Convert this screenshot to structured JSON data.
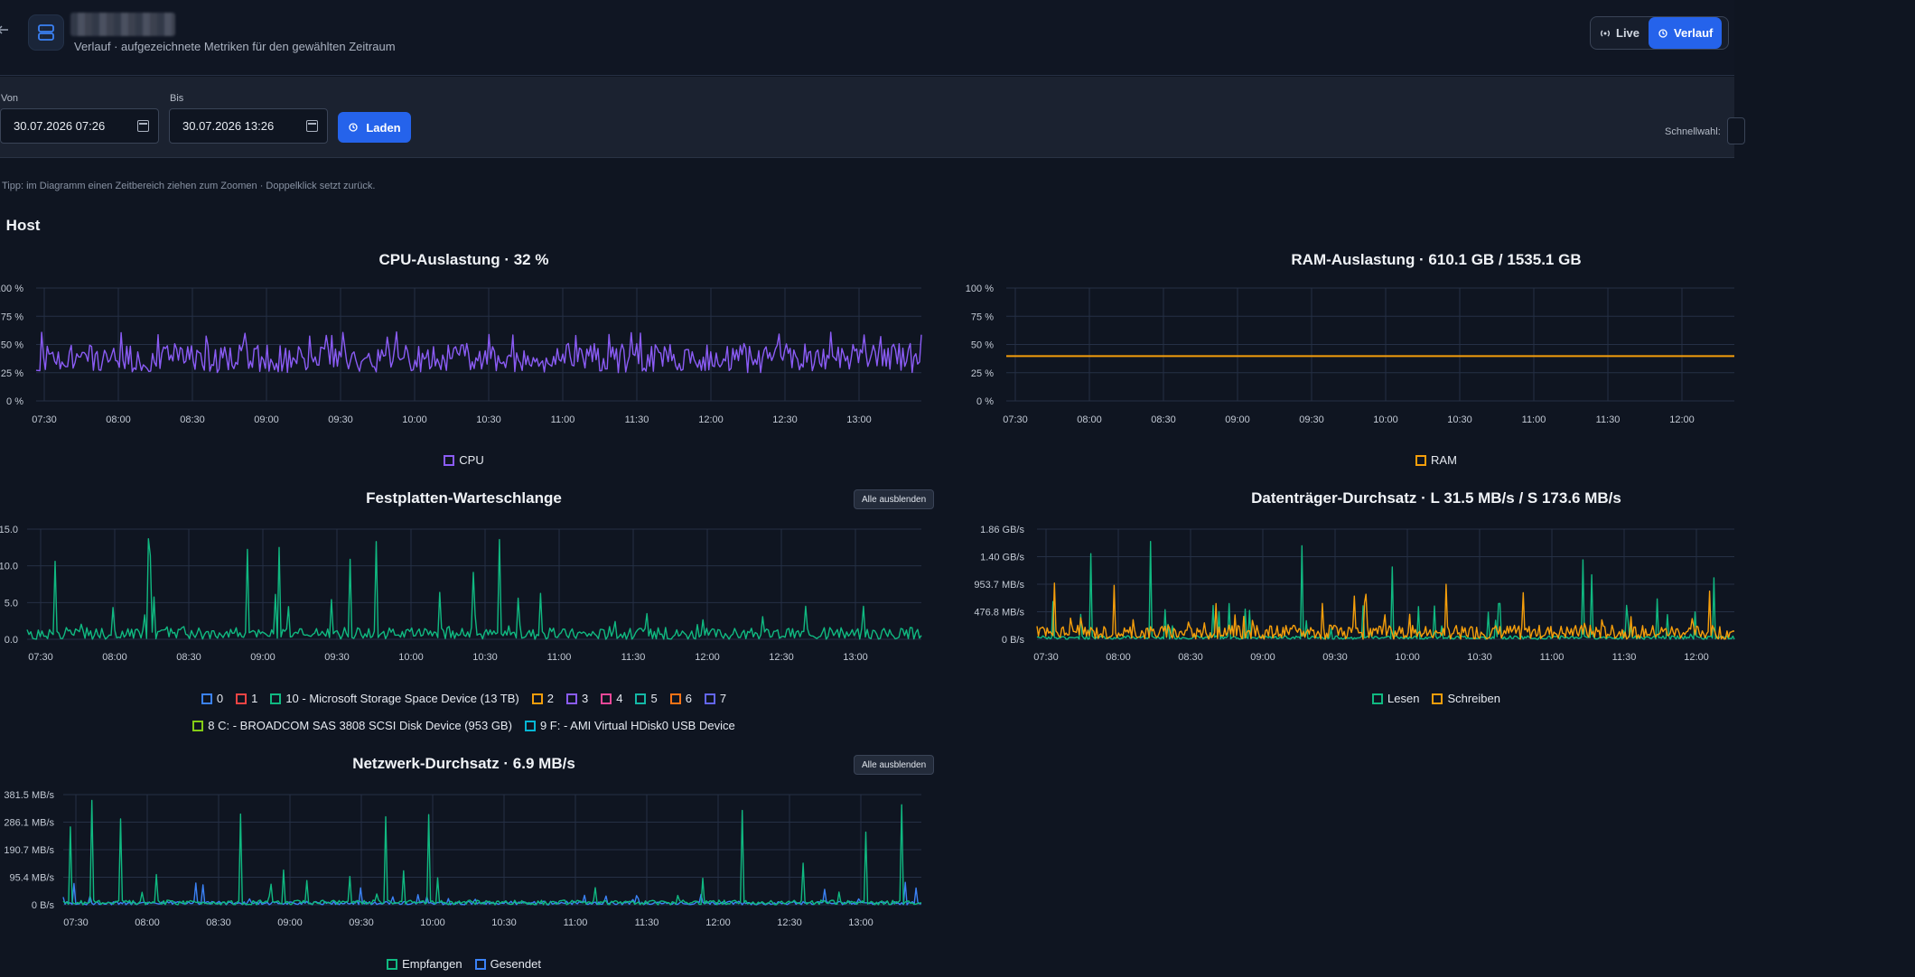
{
  "header": {
    "subtitle": "Verlauf · aufgezeichnete Metriken für den gewählten Zeitraum",
    "modes": [
      {
        "label": "Live",
        "active": false
      },
      {
        "label": "Verlauf",
        "active": true
      }
    ]
  },
  "filters": {
    "from_label": "Von",
    "from_value": "30.07.2026 07:26",
    "to_label": "Bis",
    "to_value": "30.07.2026 13:26",
    "load_label": "Laden",
    "quick_label": "Schnellwahl:"
  },
  "tip": "Tipp: im Diagramm einen Zeitbereich ziehen zum Zoomen · Doppelklick setzt zurück.",
  "section_title": "Host",
  "hide_all_label": "Alle ausblenden",
  "colors": {
    "cpu": "#8b5cf6",
    "ram": "#f59e0b",
    "grid": "#253045",
    "axis_text": "#c2c9d4",
    "read": "#10b981",
    "write": "#f59e0b",
    "received": "#10b981",
    "sent": "#3b82f6"
  },
  "chart_data": [
    {
      "id": "cpu",
      "type": "line",
      "title": "CPU-Auslastung · 32 %",
      "x_ticks": [
        "07:30",
        "08:00",
        "08:30",
        "09:00",
        "09:30",
        "10:00",
        "10:30",
        "11:00",
        "11:30",
        "12:00",
        "12:30",
        "13:00"
      ],
      "y_ticks": [
        "0 %",
        "25 %",
        "50 %",
        "75 %",
        "100 %"
      ],
      "ylim": [
        0,
        100
      ],
      "series": [
        {
          "name": "CPU",
          "color": "#8b5cf6",
          "pattern": "noise",
          "mean": 38,
          "amp": 13,
          "spike_max": 62
        }
      ],
      "legend": [
        "CPU"
      ]
    },
    {
      "id": "ram",
      "type": "line",
      "title": "RAM-Auslastung · 610.1 GB / 1535.1 GB",
      "x_ticks": [
        "07:30",
        "08:00",
        "08:30",
        "09:00",
        "09:30",
        "10:00",
        "10:30",
        "11:00",
        "11:30",
        "12:00"
      ],
      "y_ticks": [
        "0 %",
        "25 %",
        "50 %",
        "75 %",
        "100 %"
      ],
      "ylim": [
        0,
        100
      ],
      "series": [
        {
          "name": "RAM",
          "color": "#f59e0b",
          "pattern": "flat",
          "value": 39.7
        }
      ],
      "legend": [
        "RAM"
      ]
    },
    {
      "id": "disk-queue",
      "type": "line",
      "title": "Festplatten-Warteschlange",
      "x_ticks": [
        "07:30",
        "08:00",
        "08:30",
        "09:00",
        "09:30",
        "10:00",
        "10:30",
        "11:00",
        "11:30",
        "12:00",
        "12:30",
        "13:00"
      ],
      "y_ticks": [
        "0.0",
        "5.0",
        "10.0",
        "15.0"
      ],
      "ylim": [
        0,
        15
      ],
      "series": [
        {
          "name": "10 - Microsoft Storage Space Device (13 TB)",
          "color": "#10b981",
          "pattern": "spiky",
          "mean": 0.8,
          "spike_max": 14.2
        }
      ],
      "legend": [
        {
          "label": "0",
          "color": "#3b82f6"
        },
        {
          "label": "1",
          "color": "#ef4444"
        },
        {
          "label": "10 - Microsoft Storage Space Device (13 TB)",
          "color": "#10b981"
        },
        {
          "label": "2",
          "color": "#f59e0b"
        },
        {
          "label": "3",
          "color": "#8b5cf6"
        },
        {
          "label": "4",
          "color": "#ec4899"
        },
        {
          "label": "5",
          "color": "#14b8a6"
        },
        {
          "label": "6",
          "color": "#f97316"
        },
        {
          "label": "7",
          "color": "#6366f1"
        },
        {
          "label": "8 C: - BROADCOM SAS 3808 SCSI Disk Device (953 GB)",
          "color": "#84cc16"
        },
        {
          "label": "9 F: - AMI Virtual HDisk0 USB Device",
          "color": "#06b6d4"
        }
      ]
    },
    {
      "id": "disk-throughput",
      "type": "line",
      "title": "Datenträger-Durchsatz · L 31.5 MB/s / S 173.6 MB/s",
      "x_ticks": [
        "07:30",
        "08:00",
        "08:30",
        "09:00",
        "09:30",
        "10:00",
        "10:30",
        "11:00",
        "11:30",
        "12:00"
      ],
      "y_ticks": [
        "0 B/s",
        "476.8 MB/s",
        "953.7 MB/s",
        "1.40 GB/s",
        "1.86 GB/s"
      ],
      "ylim": [
        0,
        1.86
      ],
      "series": [
        {
          "name": "Schreiben",
          "color": "#f59e0b",
          "pattern": "spiky",
          "mean": 0.12,
          "spike_max": 0.95
        },
        {
          "name": "Lesen",
          "color": "#10b981",
          "pattern": "spiky",
          "mean": 0.03,
          "spike_max": 1.7
        }
      ],
      "legend": [
        {
          "label": "Lesen",
          "color": "#10b981"
        },
        {
          "label": "Schreiben",
          "color": "#f59e0b"
        }
      ]
    },
    {
      "id": "network",
      "type": "line",
      "title": "Netzwerk-Durchsatz · 6.9 MB/s",
      "x_ticks": [
        "07:30",
        "08:00",
        "08:30",
        "09:00",
        "09:30",
        "10:00",
        "10:30",
        "11:00",
        "11:30",
        "12:00",
        "12:30",
        "13:00"
      ],
      "y_ticks": [
        "0 B/s",
        "95.4 MB/s",
        "190.7 MB/s",
        "286.1 MB/s",
        "381.5 MB/s"
      ],
      "ylim": [
        0,
        381.5
      ],
      "series": [
        {
          "name": "Empfangen",
          "color": "#10b981",
          "pattern": "spiky",
          "mean": 8,
          "spike_max": 370
        },
        {
          "name": "Gesendet",
          "color": "#3b82f6",
          "pattern": "spiky",
          "mean": 6,
          "spike_max": 80
        }
      ],
      "legend": [
        {
          "label": "Empfangen",
          "color": "#10b981"
        },
        {
          "label": "Gesendet",
          "color": "#3b82f6"
        }
      ]
    }
  ]
}
